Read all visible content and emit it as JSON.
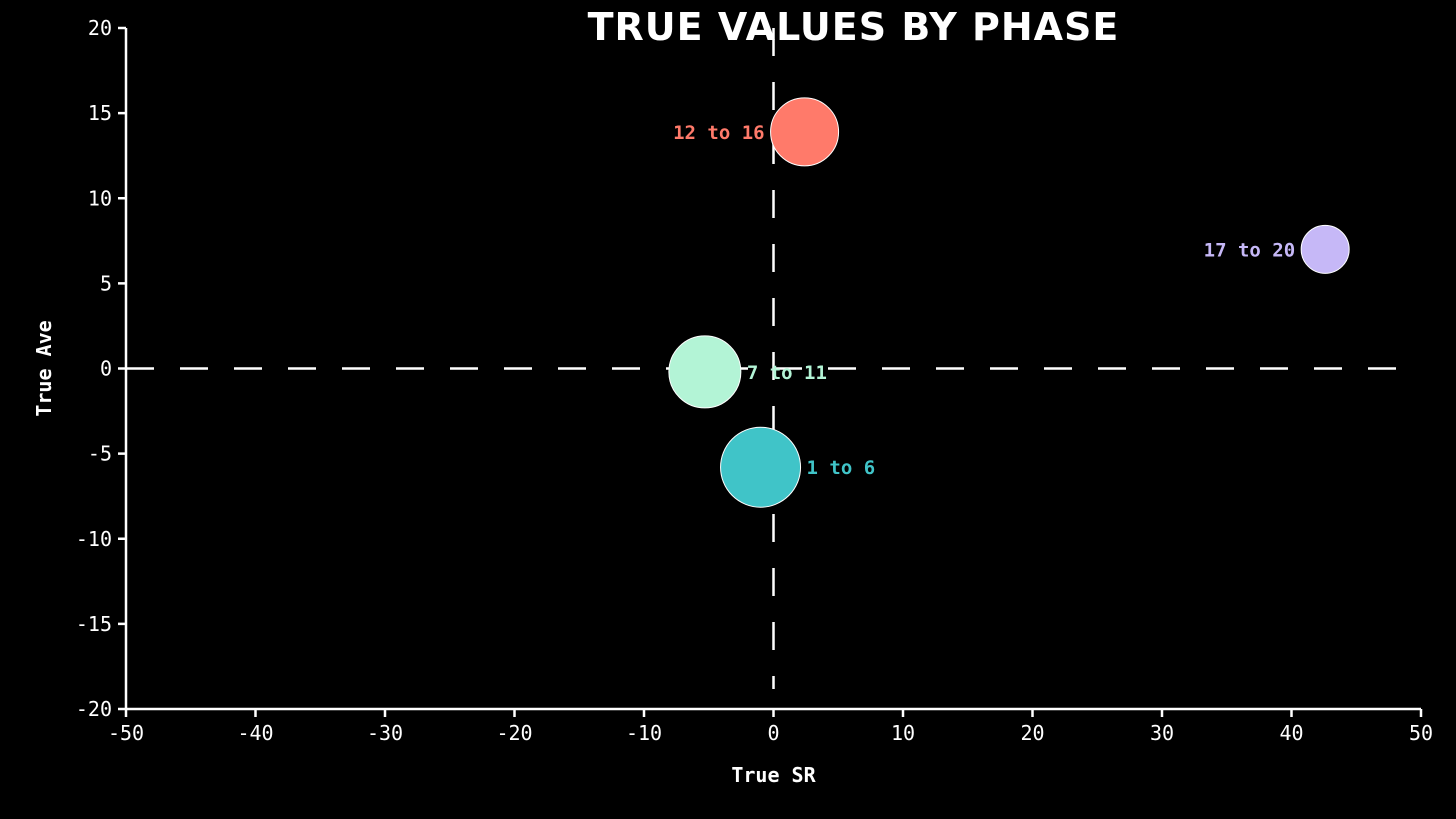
{
  "chart_data": {
    "type": "scatter",
    "title": "TRUE VALUES BY PHASE",
    "xlabel": "True SR",
    "ylabel": "True Ave",
    "xlim": [
      -50,
      50
    ],
    "ylim": [
      -20,
      20
    ],
    "x_ticks": [
      -50,
      -40,
      -30,
      -20,
      -10,
      0,
      10,
      20,
      30,
      40,
      50
    ],
    "y_ticks": [
      -20,
      -15,
      -10,
      -5,
      0,
      5,
      10,
      15,
      20
    ],
    "reference_lines": {
      "x": 0,
      "y": 0,
      "style": "dashed"
    },
    "grid": false,
    "points": [
      {
        "label": "1 to 6",
        "x": -1,
        "y": -5.8,
        "size": 40,
        "color": "#40c4c8",
        "label_side": "right"
      },
      {
        "label": "7 to 11",
        "x": -5.3,
        "y": -0.2,
        "size": 36,
        "color": "#b3f4d6",
        "label_side": "right"
      },
      {
        "label": "12 to 16",
        "x": 2.4,
        "y": 13.9,
        "size": 34,
        "color": "#ff7a6a",
        "label_side": "left"
      },
      {
        "label": "17 to 20",
        "x": 42.6,
        "y": 7,
        "size": 24,
        "color": "#c6b8f7",
        "label_side": "left"
      }
    ]
  }
}
